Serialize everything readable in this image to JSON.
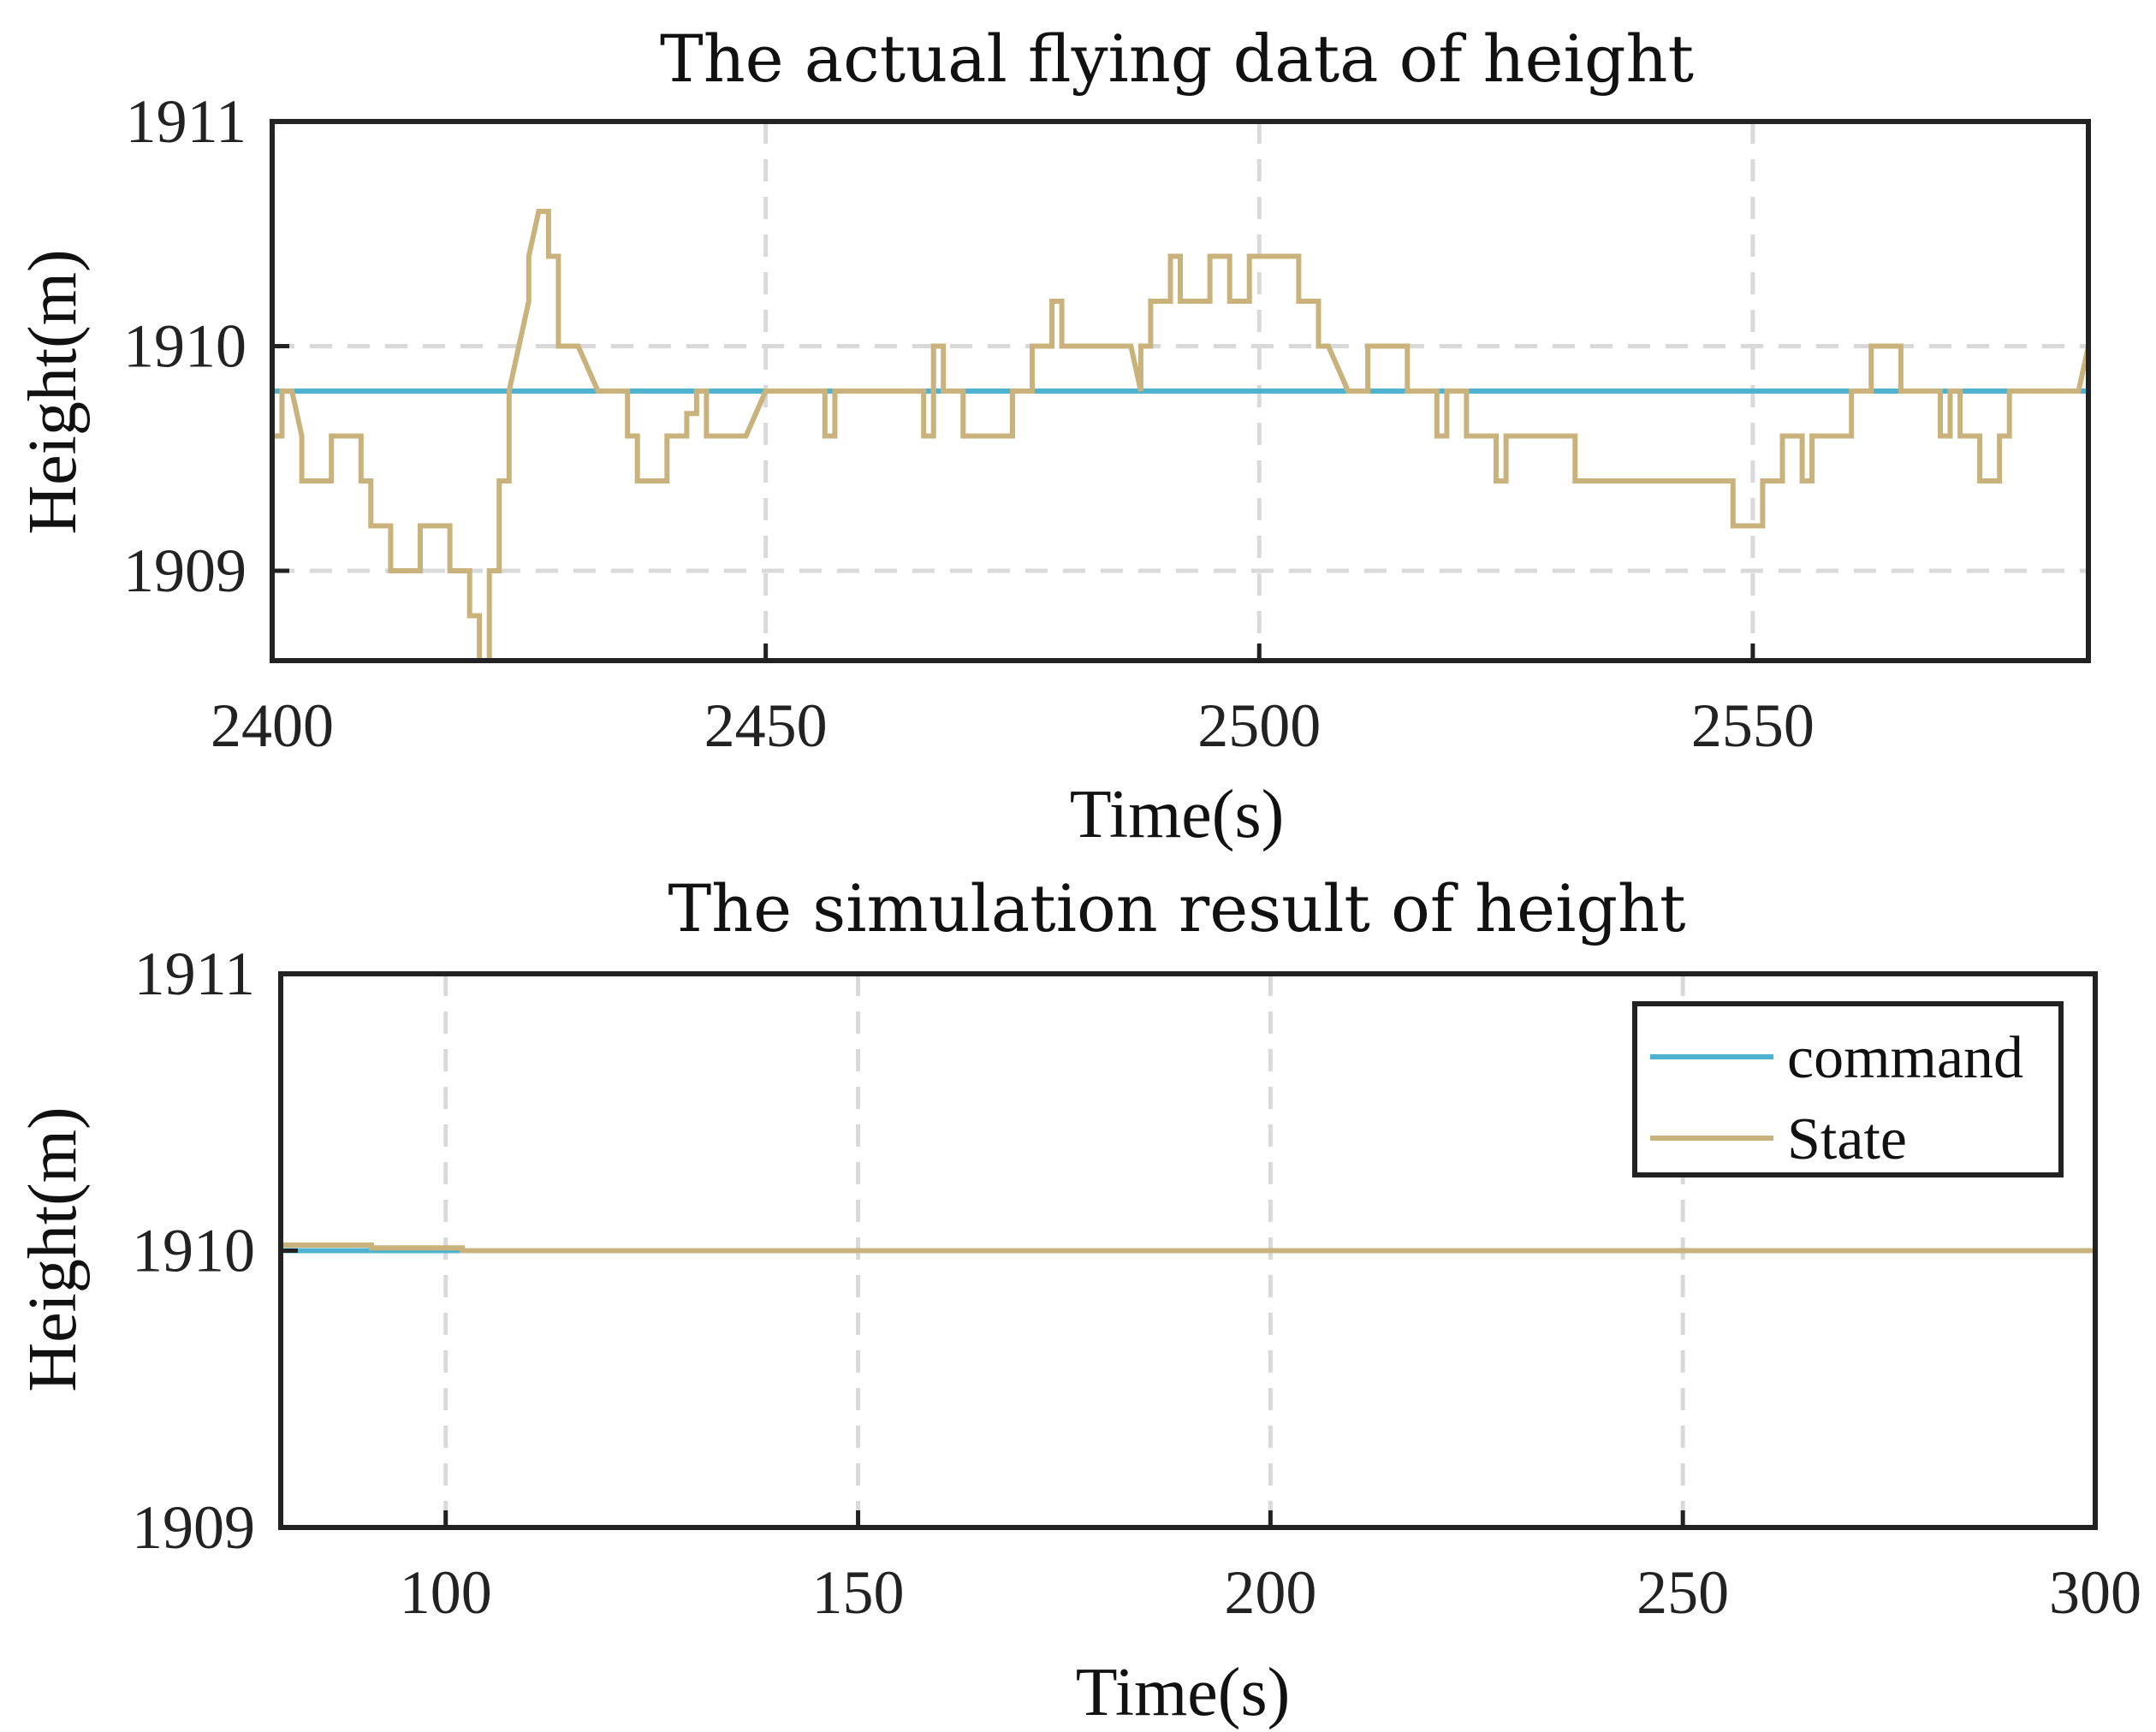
{
  "chart_data": [
    {
      "type": "line",
      "title": "The actual flying data of height",
      "xlabel": "Time(s)",
      "ylabel": "Height(m)",
      "xlim": [
        2400,
        2584
      ],
      "ylim": [
        1908.6,
        1911
      ],
      "xticks": [
        2400,
        2450,
        2500,
        2550
      ],
      "yticks": [
        1909,
        1910,
        1911
      ],
      "xtick_labels": [
        "2400",
        "2450",
        "2500",
        "2550"
      ],
      "ytick_labels": [
        "1909",
        "1910",
        "1911"
      ],
      "grid": true,
      "colors": {
        "command": "#4fb3cf",
        "state": "#c9b27c"
      },
      "series": [
        {
          "name": "command",
          "x": [
            2400,
            2584
          ],
          "y": [
            1909.8,
            1909.8
          ]
        },
        {
          "name": "State",
          "x": [
            2400,
            2401,
            2401,
            2402,
            2403,
            2403,
            2406,
            2406,
            2409,
            2409,
            2410,
            2410,
            2412,
            2412,
            2415,
            2415,
            2418,
            2418,
            2420,
            2420,
            2421,
            2421,
            2422,
            2422,
            2423,
            2423,
            2424,
            2424,
            2425,
            2426,
            2426,
            2427,
            2428,
            2428,
            2429,
            2429,
            2431,
            2433,
            2436,
            2436,
            2437,
            2437,
            2440,
            2440,
            2442,
            2442,
            2443,
            2443,
            2444,
            2444,
            2448,
            2448,
            2450,
            2451,
            2451,
            2456,
            2456,
            2457,
            2457,
            2465,
            2465,
            2466,
            2466,
            2467,
            2467,
            2468,
            2468,
            2470,
            2470,
            2475,
            2475,
            2477,
            2477,
            2479,
            2479,
            2480,
            2480,
            2486,
            2487,
            2488,
            2488,
            2489,
            2489,
            2491,
            2491,
            2492,
            2492,
            2494,
            2494,
            2495,
            2495,
            2497,
            2497,
            2499,
            2499,
            2504,
            2504,
            2506,
            2506,
            2507,
            2509,
            2510,
            2510,
            2511,
            2511,
            2515,
            2515,
            2517,
            2518,
            2518,
            2519,
            2519,
            2521,
            2521,
            2522,
            2522,
            2524,
            2524,
            2525,
            2525,
            2527,
            2527,
            2532,
            2532,
            2535,
            2535,
            2537,
            2537,
            2547,
            2547,
            2548,
            2548,
            2551,
            2551,
            2553,
            2553,
            2555,
            2555,
            2556,
            2556,
            2558,
            2558,
            2560,
            2560,
            2562,
            2562,
            2565,
            2565,
            2569,
            2569,
            2570,
            2570,
            2571,
            2571,
            2573,
            2573,
            2575,
            2575,
            2576,
            2576,
            2577,
            2577,
            2583,
            2584,
            2584
          ],
          "y": [
            1909.6,
            1909.6,
            1909.8,
            1909.8,
            1909.6,
            1909.4,
            1909.4,
            1909.6,
            1909.6,
            1909.4,
            1909.4,
            1909.2,
            1909.2,
            1909.0,
            1909.0,
            1909.2,
            1909.2,
            1909.0,
            1909.0,
            1908.8,
            1908.8,
            1908.6,
            1908.6,
            1909.0,
            1909.0,
            1909.4,
            1909.4,
            1909.8,
            1910.0,
            1910.2,
            1910.4,
            1910.6,
            1910.6,
            1910.4,
            1910.4,
            1910.0,
            1910.0,
            1909.8,
            1909.8,
            1909.6,
            1909.6,
            1909.4,
            1909.4,
            1909.6,
            1909.6,
            1909.7,
            1909.7,
            1909.8,
            1909.8,
            1909.6,
            1909.6,
            1909.6,
            1909.8,
            1909.8,
            1909.8,
            1909.8,
            1909.6,
            1909.6,
            1909.8,
            1909.8,
            1909.8,
            1909.8,
            1909.6,
            1909.6,
            1910.0,
            1910.0,
            1909.8,
            1909.8,
            1909.6,
            1909.6,
            1909.8,
            1909.8,
            1910.0,
            1910.0,
            1910.2,
            1910.2,
            1910.0,
            1910.0,
            1910.0,
            1909.8,
            1910.0,
            1910.0,
            1910.2,
            1910.2,
            1910.4,
            1910.4,
            1910.2,
            1910.2,
            1910.2,
            1910.2,
            1910.4,
            1910.4,
            1910.2,
            1910.2,
            1910.4,
            1910.4,
            1910.2,
            1910.2,
            1910.0,
            1910.0,
            1909.8,
            1909.8,
            1909.8,
            1909.8,
            1910.0,
            1910.0,
            1909.8,
            1909.8,
            1909.8,
            1909.6,
            1909.6,
            1909.8,
            1909.8,
            1909.6,
            1909.6,
            1909.6,
            1909.6,
            1909.4,
            1909.4,
            1909.6,
            1909.6,
            1909.6,
            1909.6,
            1909.4,
            1909.4,
            1909.4,
            1909.4,
            1909.4,
            1909.4,
            1909.4,
            1909.4,
            1909.2,
            1909.2,
            1909.4,
            1909.4,
            1909.6,
            1909.6,
            1909.4,
            1909.4,
            1909.6,
            1909.6,
            1909.6,
            1909.6,
            1909.8,
            1909.8,
            1910.0,
            1910.0,
            1909.8,
            1909.8,
            1909.6,
            1909.6,
            1909.8,
            1909.8,
            1909.6,
            1909.6,
            1909.4,
            1909.4,
            1909.6,
            1909.6,
            1909.8,
            1909.8,
            1909.8,
            1909.8,
            1910.0,
            1909.8
          ]
        }
      ]
    },
    {
      "type": "line",
      "title": "The simulation result of height",
      "xlabel": "Time(s)",
      "ylabel": "Height(m)",
      "xlim": [
        80,
        300
      ],
      "ylim": [
        1909,
        1911
      ],
      "xticks": [
        100,
        150,
        200,
        250,
        300
      ],
      "yticks": [
        1909,
        1910,
        1911
      ],
      "xtick_labels": [
        "100",
        "150",
        "200",
        "250",
        "300"
      ],
      "ytick_labels": [
        "1909",
        "1910",
        "1911"
      ],
      "grid": true,
      "legend": {
        "position": "top-right",
        "entries": [
          "command",
          "State"
        ]
      },
      "colors": {
        "command": "#4fb3cf",
        "state": "#c9b27c"
      },
      "series": [
        {
          "name": "command",
          "x": [
            80,
            300
          ],
          "y": [
            1910.0,
            1910.0
          ]
        },
        {
          "name": "State",
          "x": [
            80,
            91,
            91,
            102,
            102,
            300
          ],
          "y": [
            1910.02,
            1910.02,
            1910.01,
            1910.01,
            1910.0,
            1910.0
          ]
        }
      ]
    }
  ]
}
